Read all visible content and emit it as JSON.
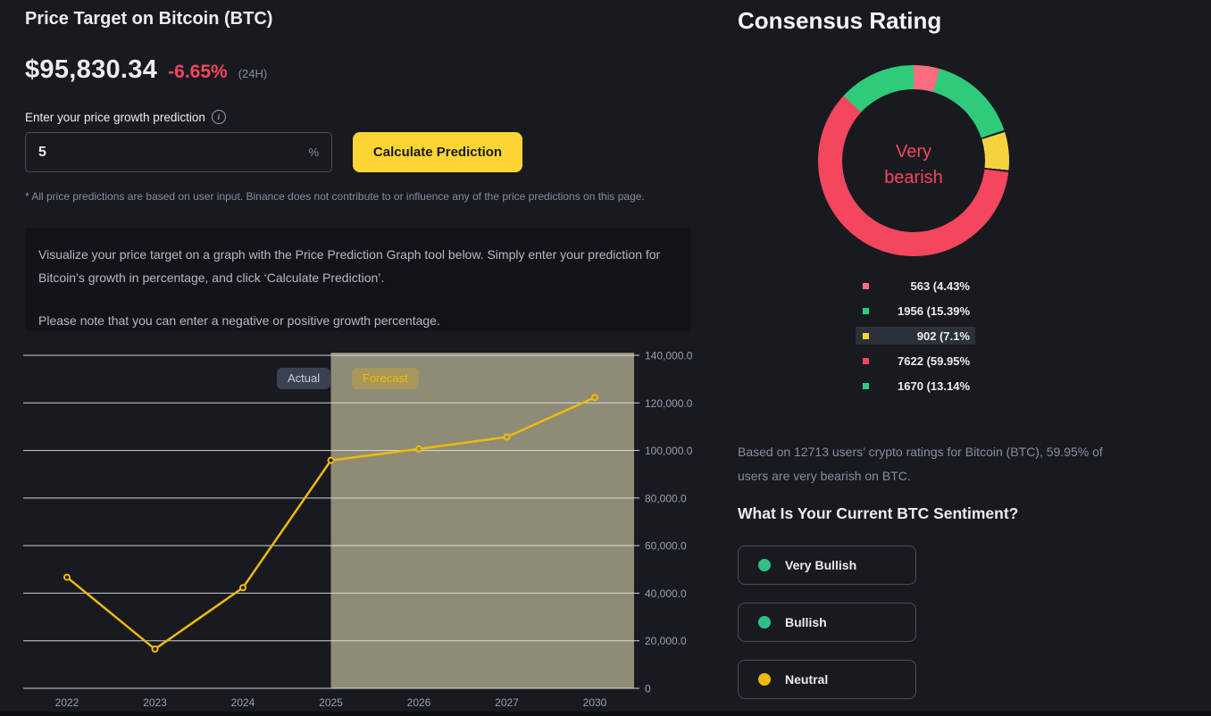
{
  "colors": {
    "background": "#181a20",
    "panel": "#131419",
    "accent_yellow": "#fcd535",
    "line_gold": "#f0b90b",
    "red": "#f6465d",
    "green": "#2ecc7a",
    "pink": "#fa6c7f",
    "forecast_region": "#8e8c77",
    "axis_label": "#96a0af",
    "muted_text": "#848e9c"
  },
  "price_target": {
    "title": "Price Target on Bitcoin (BTC)",
    "price": "$95,830.34",
    "change": "-6.65%",
    "change_period": "(24H)",
    "input_label": "Enter your price growth prediction",
    "input_value": "5",
    "input_suffix": "%",
    "calculate_button": "Calculate Prediction",
    "disclaimer": "* All price predictions are based on user input. Binance does not contribute to or influence any of the price predictions on this page.",
    "info_paragraph_1": "Visualize your price target on a graph with the Price Prediction Graph tool below. Simply enter your prediction for Bitcoin’s growth in percentage, and click ‘Calculate Prediction’.",
    "info_paragraph_2": "Please note that you can enter a negative or positive growth percentage."
  },
  "chart": {
    "actual_label": "Actual",
    "forecast_label": "Forecast"
  },
  "chart_data": [
    {
      "type": "line",
      "x_ticks": [
        "2022",
        "2023",
        "2024",
        "2025",
        "2026",
        "2027",
        "2030"
      ],
      "y_ticks": [
        "140,000.0",
        "120,000.0",
        "100,000.0",
        "80,000.0",
        "60,000.0",
        "40,000.0",
        "20,000.0",
        "0"
      ],
      "ylim": [
        0,
        140000
      ],
      "grid": true,
      "legend_position": "top",
      "forecast_region_start": "2025",
      "line_color": "#f0b90b",
      "series": [
        {
          "name": "Actual",
          "x": [
            "2022",
            "2023",
            "2024",
            "2025"
          ],
          "values": [
            46700,
            16500,
            42300,
            95830
          ]
        },
        {
          "name": "Forecast",
          "x": [
            "2025",
            "2026",
            "2027",
            "2030"
          ],
          "values": [
            95830,
            100622,
            105653,
            122306
          ]
        }
      ]
    },
    {
      "type": "pie",
      "title": "Consensus Rating",
      "center_label": "Very bearish",
      "slices": [
        {
          "label": "563 (4.43%",
          "value": 563,
          "pct": 4.43,
          "color": "#fa6c7f",
          "highlighted": false
        },
        {
          "label": "1956 (15.39%",
          "value": 1956,
          "pct": 15.39,
          "color": "#2ecc7a",
          "highlighted": false
        },
        {
          "label": "902 (7.1%",
          "value": 902,
          "pct": 7.1,
          "color": "#f5d33f",
          "highlighted": true
        },
        {
          "label": "7622 (59.95%",
          "value": 7622,
          "pct": 59.95,
          "color": "#f4465d",
          "highlighted": false
        },
        {
          "label": "1670 (13.14%",
          "value": 1670,
          "pct": 13.14,
          "color": "#2ecc7a",
          "highlighted": false
        }
      ]
    }
  ],
  "consensus": {
    "title": "Consensus Rating",
    "center_label_line1": "Very",
    "center_label_line2": "bearish",
    "summary": "Based on 12713 users’ crypto ratings for Bitcoin (BTC), 59.95% of users are very bearish on BTC."
  },
  "sentiment": {
    "title": "What Is Your Current BTC Sentiment?",
    "options": [
      {
        "label": "Very Bullish",
        "color": "#2fbf87"
      },
      {
        "label": "Bullish",
        "color": "#2fbf87"
      },
      {
        "label": "Neutral",
        "color": "#f0b90b"
      }
    ]
  }
}
